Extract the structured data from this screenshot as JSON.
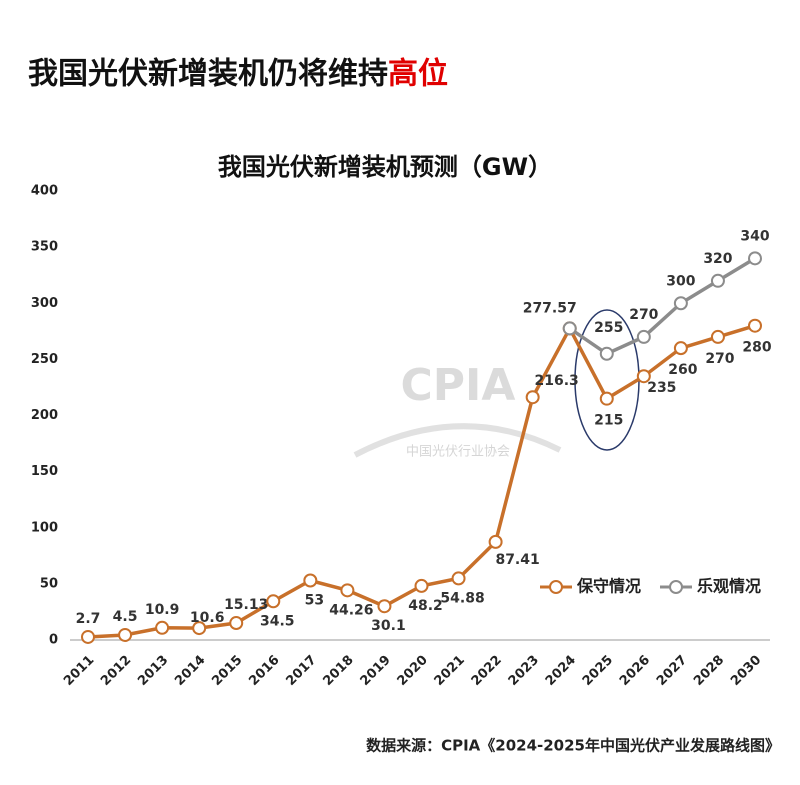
{
  "chart_data": {
    "type": "line",
    "title": "我国光伏新增装机仍将维持",
    "title_highlight": "高位",
    "subtitle": "我国光伏新增装机预测（GW）",
    "source": "数据来源：CPIA《2024-2025年中国光伏产业发展路线图》",
    "watermark": [
      "CPIA",
      "中国光伏行业协会"
    ],
    "categories": [
      "2011",
      "2012",
      "2013",
      "2014",
      "2015",
      "2016",
      "2017",
      "2018",
      "2019",
      "2020",
      "2021",
      "2022",
      "2023",
      "2024",
      "2025",
      "2026",
      "2027",
      "2028",
      "2030"
    ],
    "series": [
      {
        "name": "保守情况",
        "color": "#c8702a",
        "values": [
          2.7,
          4.5,
          10.9,
          10.6,
          15.13,
          34.5,
          53,
          44.26,
          30.1,
          48.2,
          54.88,
          87.41,
          216.3,
          277.57,
          215,
          235,
          260,
          270,
          280
        ]
      },
      {
        "name": "乐观情况",
        "color": "#8c8c8c",
        "values": [
          null,
          null,
          null,
          null,
          null,
          null,
          null,
          null,
          null,
          null,
          null,
          null,
          null,
          277.57,
          255,
          270,
          300,
          320,
          340
        ]
      }
    ],
    "ylim": [
      0,
      400
    ],
    "yticks": [
      0,
      50,
      100,
      150,
      200,
      250,
      300,
      350,
      400
    ],
    "grid": false,
    "legend": "right"
  }
}
